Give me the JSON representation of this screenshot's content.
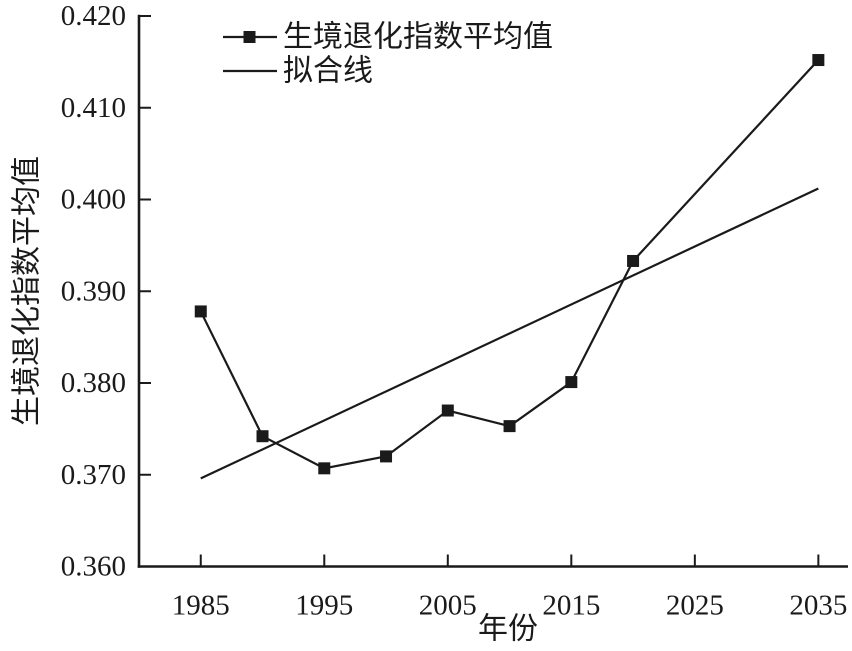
{
  "figure": {
    "background": "#ffffff",
    "ink_color": "#1a1a1a"
  },
  "chart_data": {
    "type": "line",
    "title": "",
    "xlabel": "年份",
    "ylabel": "生境退化指数平均值",
    "xlim": [
      1980,
      2037.4
    ],
    "ylim": [
      0.36,
      0.42
    ],
    "grid": false,
    "legend_position": "top-left-inside",
    "x_ticks": [
      1985,
      1995,
      2005,
      2015,
      2025,
      2035
    ],
    "x_tick_labels": [
      "1985",
      "1995",
      "2005",
      "2015",
      "2025",
      "2035"
    ],
    "y_ticks": [
      0.42,
      0.41,
      0.4,
      0.39,
      0.38,
      0.37,
      0.36
    ],
    "y_tick_labels": [
      "0.420",
      "0.410",
      "0.400",
      "0.390",
      "0.380",
      "0.370",
      "0.360"
    ],
    "series": [
      {
        "name": "生境退化指数平均值",
        "line_style": "solid",
        "marker": "filled-square",
        "x": [
          1985,
          1990,
          1995,
          2000,
          2005,
          2010,
          2015,
          2020,
          2035
        ],
        "y": [
          0.3878,
          0.3742,
          0.3707,
          0.372,
          0.377,
          0.3753,
          0.3801,
          0.3933,
          0.4152
        ]
      },
      {
        "name": "拟合线",
        "line_style": "solid",
        "marker": "none",
        "x": [
          1985,
          2035
        ],
        "y": [
          0.3696,
          0.4012
        ]
      }
    ]
  }
}
